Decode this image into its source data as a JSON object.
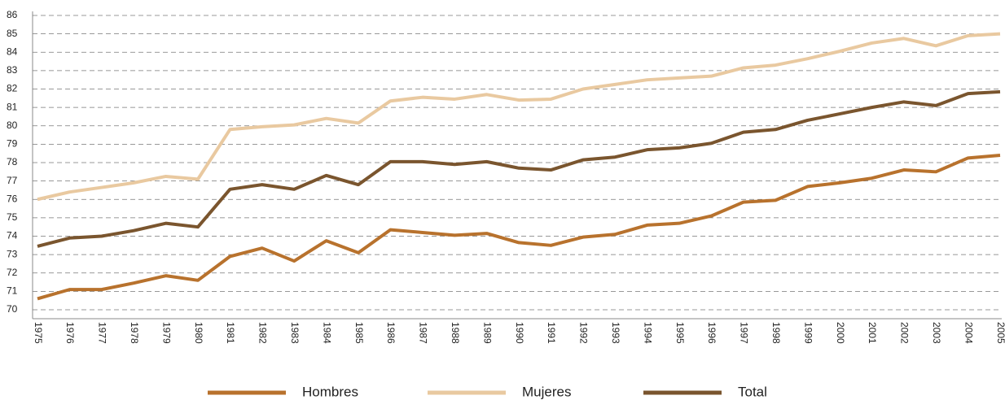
{
  "chart_data": {
    "type": "line",
    "categories": [
      "1975",
      "1976",
      "1977",
      "1978",
      "1979",
      "1980",
      "1981",
      "1982",
      "1983",
      "1984",
      "1985",
      "1986",
      "1987",
      "1988",
      "1989",
      "1990",
      "1991",
      "1992",
      "1993",
      "1994",
      "1995",
      "1996",
      "1997",
      "1998",
      "1999",
      "2000",
      "2001",
      "2002",
      "2003",
      "2004",
      "2005"
    ],
    "series": [
      {
        "name": "Hombres",
        "color": "#b8722d",
        "values": [
          70.6,
          71.1,
          71.1,
          71.45,
          71.85,
          71.6,
          72.9,
          73.35,
          72.65,
          73.75,
          73.1,
          74.35,
          74.2,
          74.05,
          74.15,
          73.65,
          73.5,
          73.95,
          74.1,
          74.6,
          74.7,
          75.1,
          75.85,
          75.95,
          76.7,
          76.9,
          77.15,
          77.6,
          77.5,
          78.25,
          78.4
        ]
      },
      {
        "name": "Mujeres",
        "color": "#e9c9a0",
        "values": [
          76.0,
          76.4,
          76.65,
          76.9,
          77.25,
          77.1,
          79.8,
          79.95,
          80.05,
          80.4,
          80.15,
          81.35,
          81.55,
          81.45,
          81.7,
          81.4,
          81.45,
          82.0,
          82.25,
          82.5,
          82.6,
          82.7,
          83.15,
          83.3,
          83.65,
          84.05,
          84.5,
          84.75,
          84.35,
          84.9,
          85.0
        ]
      },
      {
        "name": "Total",
        "color": "#7a552e",
        "values": [
          73.45,
          73.9,
          74.0,
          74.3,
          74.7,
          74.5,
          76.55,
          76.8,
          76.55,
          77.3,
          76.8,
          78.05,
          78.05,
          77.9,
          78.05,
          77.7,
          77.6,
          78.15,
          78.3,
          78.7,
          78.8,
          79.05,
          79.65,
          79.8,
          80.3,
          80.65,
          81.0,
          81.3,
          81.1,
          81.75,
          81.85
        ]
      }
    ],
    "ylim": [
      70,
      86
    ],
    "yticks": [
      70,
      71,
      72,
      73,
      74,
      75,
      76,
      77,
      78,
      79,
      80,
      81,
      82,
      83,
      84,
      85,
      86
    ],
    "grid": true,
    "legend": "bottom"
  }
}
